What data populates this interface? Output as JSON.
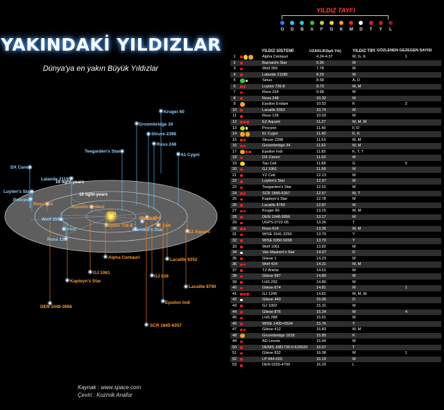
{
  "title": "YAKINDAKİ YILDIZLAR",
  "subtitle": "Dünya'ya en yakın Büyük Yıldızlar",
  "credits": {
    "source": "Kaynak : www.space.com",
    "translation": "Çeviri : Kozmik Anafor"
  },
  "colors": {
    "title_glow": "#5aa8ff",
    "disk": "#6f6f6f",
    "ring_line": "#dcdcdc",
    "label_blue": "#8fd3ff",
    "label_orange": "#ff9a2e",
    "stem_blue": "#5ec8ff",
    "stem_orange": "#ff8a1e",
    "band": "#2e2e2e",
    "legend_title": "#ff3b3b"
  },
  "diagram": {
    "ring_labels": [
      "15 light-years",
      "10 light-years"
    ],
    "sun_label": "SUN",
    "stars": [
      {
        "name": "Kruger 60",
        "tone": "blue"
      },
      {
        "name": "Groombridge 34",
        "tone": "blue"
      },
      {
        "name": "Struve 2398",
        "tone": "blue"
      },
      {
        "name": "Ross 248",
        "tone": "blue"
      },
      {
        "name": "61 Cygni",
        "tone": "blue"
      },
      {
        "name": "Teegarden's Star",
        "tone": "blue"
      },
      {
        "name": "DX Cancri",
        "tone": "blue"
      },
      {
        "name": "Lalande 21185",
        "tone": "blue"
      },
      {
        "name": "Luyten's Star",
        "tone": "blue"
      },
      {
        "name": "Procyon",
        "tone": "blue"
      },
      {
        "name": "Ross 614",
        "tone": "orange"
      },
      {
        "name": "Epsilon Eridani",
        "tone": "orange"
      },
      {
        "name": "Wolf 359",
        "tone": "blue"
      },
      {
        "name": "Sirius",
        "tone": "blue"
      },
      {
        "name": "Ross 128",
        "tone": "blue"
      },
      {
        "name": "Luyten 726-8",
        "tone": "orange"
      },
      {
        "name": "Ross 154",
        "tone": "orange"
      },
      {
        "name": "Tau Ceti",
        "tone": "orange"
      },
      {
        "name": "YZ Ceti",
        "tone": "orange"
      },
      {
        "name": "Barnard's Star",
        "tone": "blue"
      },
      {
        "name": "EZ Aquarii",
        "tone": "orange"
      },
      {
        "name": "Alpha Centauri",
        "tone": "orange"
      },
      {
        "name": "GJ 1061",
        "tone": "orange"
      },
      {
        "name": "Lacaille 9352",
        "tone": "orange"
      },
      {
        "name": "Kapteyn's Star",
        "tone": "orange"
      },
      {
        "name": "GJ 628",
        "tone": "orange"
      },
      {
        "name": "Lacaille 8760",
        "tone": "orange"
      },
      {
        "name": "Epsilon Indi",
        "tone": "orange"
      },
      {
        "name": "DEN 1048-3956",
        "tone": "orange"
      },
      {
        "name": "SCR 1845-6357",
        "tone": "orange"
      }
    ]
  },
  "legend": {
    "title": "YILDIZ TAYFI",
    "classes": [
      {
        "letter": "O",
        "color": "#2f7bff"
      },
      {
        "letter": "D",
        "color": "#35c0ff"
      },
      {
        "letter": "B",
        "color": "#1fd0d0"
      },
      {
        "letter": "A",
        "color": "#3bc43b"
      },
      {
        "letter": "F",
        "color": "#b8d832"
      },
      {
        "letter": "G",
        "color": "#f6d32b"
      },
      {
        "letter": "K",
        "color": "#f5a030"
      },
      {
        "letter": "M",
        "color": "#ee2424"
      },
      {
        "letter": "D",
        "color": "#ffffff"
      },
      {
        "letter": "T",
        "color": "#c71e4a"
      },
      {
        "letter": "Y",
        "color": "#b02222"
      },
      {
        "letter": "L",
        "color": "#8a1b2a"
      }
    ]
  },
  "table": {
    "headers": {
      "system": "YILDIZ SİSTEMİ",
      "distance": "UZAKLIK(Işık Yılı)",
      "type": "YILDIZ TİPİ",
      "planets": "GÖZLENEN GEZEGEN  SAYISI"
    },
    "rows": [
      {
        "n": "1",
        "name": "Alpha Centauri",
        "dist": "4.24-4.37",
        "type": "M, G, K",
        "planets": "1",
        "dots": [
          "red",
          "yellow",
          "orange"
        ]
      },
      {
        "n": "2",
        "name": "Barnard's Star",
        "dist": "5.96",
        "type": "M",
        "planets": "",
        "dots": [
          "red"
        ]
      },
      {
        "n": "3",
        "name": "Wolf 359",
        "dist": "7.78",
        "type": "M",
        "planets": "",
        "dots": [
          "red"
        ]
      },
      {
        "n": "4",
        "name": "Lalande 21185",
        "dist": "8.29",
        "type": "M",
        "planets": "",
        "dots": [
          "red"
        ]
      },
      {
        "n": "5",
        "name": "Sirius",
        "dist": "8.58",
        "type": "A, D",
        "planets": "",
        "dots": [
          "green",
          "white"
        ]
      },
      {
        "n": "6",
        "name": "Luyten 726-8",
        "dist": "8.73",
        "type": "M, M",
        "planets": "",
        "dots": [
          "red",
          "red"
        ]
      },
      {
        "n": "7",
        "name": "Ross 154",
        "dist": "9.68",
        "type": "M",
        "planets": "",
        "dots": [
          "red"
        ]
      },
      {
        "n": "8",
        "name": "Ross 248",
        "dist": "10.32",
        "type": "M",
        "planets": "",
        "dots": [
          "red"
        ]
      },
      {
        "n": "9",
        "name": "Epsilon Eridani",
        "dist": "10.52",
        "type": "K",
        "planets": "2",
        "dots": [
          "orange"
        ]
      },
      {
        "n": "10",
        "name": "Lacaille 9352",
        "dist": "10.74",
        "type": "M",
        "planets": "",
        "dots": [
          "red"
        ]
      },
      {
        "n": "11",
        "name": "Ross 128",
        "dist": "10.92",
        "type": "M",
        "planets": "",
        "dots": [
          "red"
        ]
      },
      {
        "n": "12",
        "name": "EZ Aquarii",
        "dist": "11.27",
        "type": "M, M, M",
        "planets": "",
        "dots": [
          "red",
          "red",
          "red"
        ]
      },
      {
        "n": "13",
        "name": "Procyon",
        "dist": "11.40",
        "type": "F, D",
        "planets": "",
        "dots": [
          "lime",
          "white"
        ]
      },
      {
        "n": "14",
        "name": "61 Cygni",
        "dist": "11.40",
        "type": "K, K",
        "planets": "",
        "dots": [
          "orange",
          "orange"
        ]
      },
      {
        "n": "15",
        "name": "Struve 2398",
        "dist": "11.53",
        "type": "M, M",
        "planets": "",
        "dots": [
          "red",
          "red"
        ]
      },
      {
        "n": "16",
        "name": "Groombridge 34",
        "dist": "11.62",
        "type": "M, M",
        "planets": "",
        "dots": [
          "red",
          "red"
        ]
      },
      {
        "n": "17",
        "name": "Epsilon Indi",
        "dist": "11.82",
        "type": "K, T, T",
        "planets": "",
        "dots": [
          "orange",
          "red",
          "red"
        ]
      },
      {
        "n": "18",
        "name": "DX Cancri",
        "dist": "11.63",
        "type": "M",
        "planets": "",
        "dots": [
          "red"
        ]
      },
      {
        "n": "19",
        "name": "Tau Ceti",
        "dist": "11.89",
        "type": "G",
        "planets": "5",
        "dots": [
          "yellow"
        ]
      },
      {
        "n": "20",
        "name": "GJ 1061",
        "dist": "11.99",
        "type": "M",
        "planets": "",
        "dots": [
          "red"
        ]
      },
      {
        "n": "21",
        "name": "YZ Ceti",
        "dist": "12.13",
        "type": "M",
        "planets": "",
        "dots": [
          "red"
        ]
      },
      {
        "n": "22",
        "name": "Luyten's Star",
        "dist": "12.37",
        "type": "M",
        "planets": "",
        "dots": [
          "red"
        ]
      },
      {
        "n": "23",
        "name": "Teegarden's Star",
        "dist": "12.51",
        "type": "M",
        "planets": "",
        "dots": [
          "red"
        ]
      },
      {
        "n": "24",
        "name": "SCR 1845-6357",
        "dist": "12.57",
        "type": "M, T",
        "planets": "",
        "dots": [
          "red",
          "red"
        ]
      },
      {
        "n": "25",
        "name": "Kapteyn's Star",
        "dist": "12.78",
        "type": "M",
        "planets": "",
        "dots": [
          "red"
        ]
      },
      {
        "n": "26",
        "name": "Lacaille 8760",
        "dist": "12.87",
        "type": "M",
        "planets": "",
        "dots": [
          "red"
        ]
      },
      {
        "n": "27",
        "name": "Kruger 60",
        "dist": "13.15",
        "type": "M, M",
        "planets": "",
        "dots": [
          "red",
          "red"
        ]
      },
      {
        "n": "28",
        "name": "DEN 1048-3956",
        "dist": "13.17",
        "type": "M",
        "planets": "",
        "dots": [
          "red"
        ]
      },
      {
        "n": "29",
        "name": "UGPS 0722-05",
        "dist": "13.26",
        "type": "T",
        "planets": "",
        "dots": [
          "red"
        ]
      },
      {
        "n": "30",
        "name": "Ross 614",
        "dist": "13.35",
        "type": "M, M",
        "planets": "",
        "dots": [
          "red",
          "red"
        ]
      },
      {
        "n": "31",
        "name": "WISE 1541-2250",
        "dist": "13.70",
        "type": "Y",
        "planets": "",
        "dots": [
          "red"
        ]
      },
      {
        "n": "32",
        "name": "WISE 0350-5658",
        "dist": "13.70",
        "type": "Y",
        "planets": "",
        "dots": [
          "red"
        ]
      },
      {
        "n": "33",
        "name": "Wolf 1061",
        "dist": "13.82",
        "type": "M",
        "planets": "",
        "dots": [
          "red"
        ]
      },
      {
        "n": "34",
        "name": "Van Maanen's Star",
        "dist": "14.07",
        "type": "D",
        "planets": "",
        "dots": [
          "white"
        ]
      },
      {
        "n": "35",
        "name": "Gliese 1",
        "dist": "14.23",
        "type": "M",
        "planets": "",
        "dots": [
          "red"
        ]
      },
      {
        "n": "36",
        "name": "Wolf 424",
        "dist": "14.31",
        "type": "M, M",
        "planets": "",
        "dots": [
          "red",
          "red"
        ]
      },
      {
        "n": "37",
        "name": "TZ Arietis",
        "dist": "14.51",
        "type": "M",
        "planets": "",
        "dots": [
          "red"
        ]
      },
      {
        "n": "38",
        "name": "Gliese 687",
        "dist": "14.80",
        "type": "M",
        "planets": "",
        "dots": [
          "red"
        ]
      },
      {
        "n": "39",
        "name": "LHS 292",
        "dist": "14.80",
        "type": "M",
        "planets": "",
        "dots": [
          "red"
        ]
      },
      {
        "n": "40",
        "name": "Gliese 674",
        "dist": "14.81",
        "type": "M",
        "planets": "1",
        "dots": [
          "red"
        ]
      },
      {
        "n": "41",
        "name": "GJ 1245",
        "dist": "14.81",
        "type": "M, M, M",
        "planets": "",
        "dots": [
          "red",
          "red",
          "red"
        ]
      },
      {
        "n": "42",
        "name": "Gliese 440",
        "dist": "15.06",
        "type": "D",
        "planets": "",
        "dots": [
          "white"
        ]
      },
      {
        "n": "43",
        "name": "GJ 1002",
        "dist": "15.31",
        "type": "M",
        "planets": "",
        "dots": [
          "red"
        ]
      },
      {
        "n": "44",
        "name": "Gliese 876",
        "dist": "15.34",
        "type": "M",
        "planets": "4",
        "dots": [
          "red"
        ]
      },
      {
        "n": "45",
        "name": "LHS 288",
        "dist": "15.61",
        "type": "M",
        "planets": "",
        "dots": [
          "red"
        ]
      },
      {
        "n": "46",
        "name": "WISE 1405+5534",
        "dist": "15.76",
        "type": "Y",
        "planets": "",
        "dots": [
          "red"
        ]
      },
      {
        "n": "47",
        "name": "Gliese 412",
        "dist": "15.83",
        "type": "M, M",
        "planets": "",
        "dots": [
          "red",
          "red"
        ]
      },
      {
        "n": "48",
        "name": "Groombridge 1618",
        "dist": "15.85",
        "type": "K",
        "planets": "",
        "dots": [
          "orange"
        ]
      },
      {
        "n": "49",
        "name": "AD Leonis",
        "dist": "15.94",
        "type": "M",
        "planets": "",
        "dots": [
          "red"
        ]
      },
      {
        "n": "50",
        "name": "DENIS J081730.0-615520",
        "dist": "16.07",
        "type": "T",
        "planets": "",
        "dots": [
          "red"
        ]
      },
      {
        "n": "51",
        "name": "Gliese 832",
        "dist": "16.08",
        "type": "M",
        "planets": "1",
        "dots": [
          "red"
        ]
      },
      {
        "n": "52",
        "name": "LP 944-020",
        "dist": "16.19",
        "type": "M",
        "planets": "",
        "dots": [
          "red"
        ]
      },
      {
        "n": "53",
        "name": "DEN 0255-4700",
        "dist": "16.20",
        "type": "L",
        "planets": "",
        "dots": [
          "red"
        ]
      }
    ]
  }
}
